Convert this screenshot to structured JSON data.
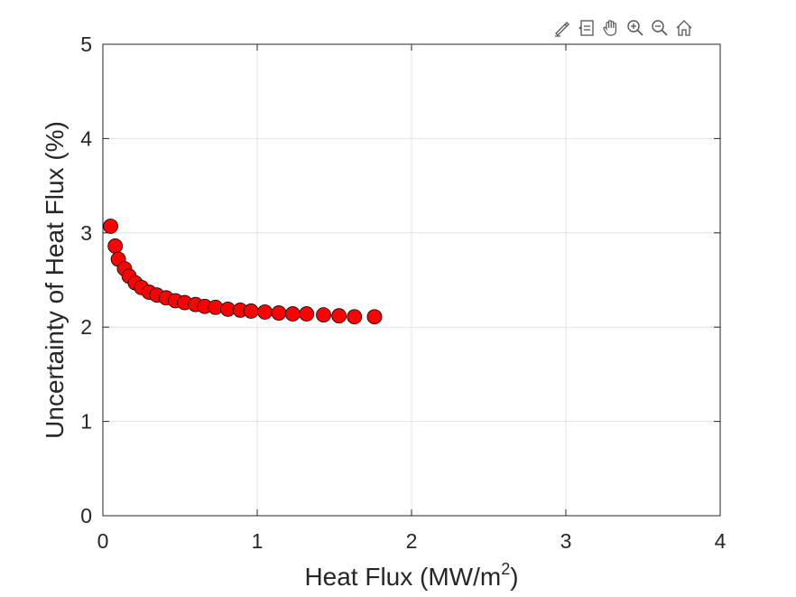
{
  "toolbar": {
    "icons": [
      "brush-icon",
      "data-tips-icon",
      "pan-hand-icon",
      "zoom-in-icon",
      "zoom-out-icon",
      "home-icon"
    ]
  },
  "chart_data": {
    "type": "scatter",
    "title": "",
    "xlabel_main": "Heat  Flux  (MW/m",
    "xlabel_sup": "2",
    "xlabel_end": ")",
    "ylabel": "Uncertainty of Heat Flux (%)",
    "xlim": [
      0,
      4
    ],
    "ylim": [
      0,
      5
    ],
    "xticks": [
      0,
      1,
      2,
      3,
      4
    ],
    "yticks": [
      0,
      1,
      2,
      3,
      4,
      5
    ],
    "grid": true,
    "marker_color": "#ff0000",
    "marker_edge": "#000000",
    "x": [
      0.05,
      0.08,
      0.1,
      0.14,
      0.17,
      0.21,
      0.25,
      0.3,
      0.35,
      0.41,
      0.47,
      0.53,
      0.6,
      0.66,
      0.73,
      0.81,
      0.89,
      0.96,
      1.05,
      1.14,
      1.23,
      1.32,
      1.43,
      1.53,
      1.63,
      1.76
    ],
    "y": [
      3.07,
      2.86,
      2.72,
      2.62,
      2.54,
      2.47,
      2.42,
      2.37,
      2.34,
      2.31,
      2.28,
      2.26,
      2.24,
      2.22,
      2.21,
      2.19,
      2.18,
      2.17,
      2.16,
      2.15,
      2.14,
      2.14,
      2.13,
      2.12,
      2.11,
      2.11
    ]
  }
}
